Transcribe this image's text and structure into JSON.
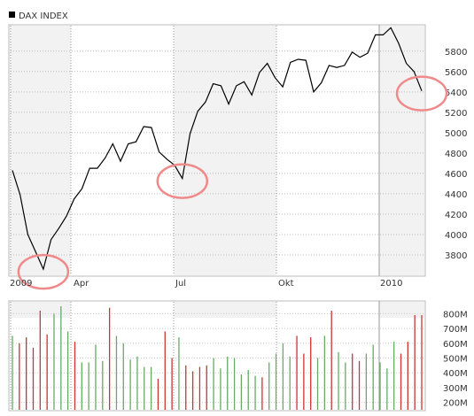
{
  "chart_data": [
    {
      "type": "line",
      "title": "DAX INDEX",
      "xlabel": "",
      "ylabel": "",
      "x_tick_labels": [
        "2009",
        "Apr",
        "Jul",
        "Okt",
        "2010"
      ],
      "y_ticks": [
        3800,
        4000,
        4200,
        4400,
        4600,
        4800,
        5000,
        5200,
        5400,
        5600,
        5800
      ],
      "ylim": [
        3600,
        6050
      ],
      "grid": true,
      "series": [
        {
          "values": [
            4630,
            4390,
            4000,
            3830,
            3660,
            3950,
            4060,
            4180,
            4350,
            4450,
            4650,
            4650,
            4750,
            4890,
            4720,
            4890,
            4910,
            5060,
            5050,
            4810,
            4740,
            4680,
            4550,
            4990,
            5210,
            5300,
            5480,
            5460,
            5280,
            5460,
            5500,
            5370,
            5590,
            5680,
            5540,
            5450,
            5690,
            5720,
            5710,
            5400,
            5490,
            5660,
            5640,
            5660,
            5790,
            5740,
            5780,
            5960,
            5960,
            6030,
            5880,
            5680,
            5600,
            5410
          ],
          "color": "#000000"
        }
      ],
      "circled_values": [
        3660,
        4550,
        5410
      ],
      "highlight_color": "#f08a8a"
    },
    {
      "type": "bar",
      "title": "",
      "y_tick_labels": [
        "800M",
        "700M",
        "600M",
        "500M",
        "400M",
        "300M",
        "200M"
      ],
      "y_ticks": [
        800,
        700,
        600,
        500,
        400,
        300,
        200
      ],
      "unit": "M",
      "ylim": [
        150,
        880
      ],
      "bars": [
        {
          "value": 650,
          "color": "#66aa66"
        },
        {
          "value": 600,
          "color": "#cc3333"
        },
        {
          "value": 640,
          "color": "#cc3333"
        },
        {
          "value": 570,
          "color": "#cc3333"
        },
        {
          "value": 820,
          "color": "#cc3333"
        },
        {
          "value": 660,
          "color": "#cc3333"
        },
        {
          "value": 800,
          "color": "#66aa66"
        },
        {
          "value": 850,
          "color": "#66aa66"
        },
        {
          "value": 680,
          "color": "#66aa66"
        },
        {
          "value": 610,
          "color": "#cc3333"
        },
        {
          "value": 470,
          "color": "#66aa66"
        },
        {
          "value": 470,
          "color": "#66aa66"
        },
        {
          "value": 590,
          "color": "#66aa66"
        },
        {
          "value": 480,
          "color": "#66aa66"
        },
        {
          "value": 840,
          "color": "#cc3333"
        },
        {
          "value": 650,
          "color": "#66aa66"
        },
        {
          "value": 600,
          "color": "#66aa66"
        },
        {
          "value": 490,
          "color": "#66aa66"
        },
        {
          "value": 510,
          "color": "#66aa66"
        },
        {
          "value": 440,
          "color": "#66aa66"
        },
        {
          "value": 440,
          "color": "#66aa66"
        },
        {
          "value": 360,
          "color": "#cc3333"
        },
        {
          "value": 680,
          "color": "#cc3333"
        },
        {
          "value": 500,
          "color": "#cc3333"
        },
        {
          "value": 640,
          "color": "#66aa66"
        },
        {
          "value": 450,
          "color": "#cc3333"
        },
        {
          "value": 410,
          "color": "#cc3333"
        },
        {
          "value": 440,
          "color": "#cc3333"
        },
        {
          "value": 450,
          "color": "#cc3333"
        },
        {
          "value": 500,
          "color": "#66aa66"
        },
        {
          "value": 430,
          "color": "#66aa66"
        },
        {
          "value": 510,
          "color": "#66aa66"
        },
        {
          "value": 500,
          "color": "#66aa66"
        },
        {
          "value": 390,
          "color": "#66aa66"
        },
        {
          "value": 420,
          "color": "#66aa66"
        },
        {
          "value": 380,
          "color": "#66aa66"
        },
        {
          "value": 370,
          "color": "#cc3333"
        },
        {
          "value": 470,
          "color": "#66aa66"
        },
        {
          "value": 530,
          "color": "#66aa66"
        },
        {
          "value": 600,
          "color": "#66aa66"
        },
        {
          "value": 510,
          "color": "#66aa66"
        },
        {
          "value": 650,
          "color": "#cc3333"
        },
        {
          "value": 530,
          "color": "#cc3333"
        },
        {
          "value": 640,
          "color": "#cc3333"
        },
        {
          "value": 500,
          "color": "#66aa66"
        },
        {
          "value": 650,
          "color": "#66aa66"
        },
        {
          "value": 820,
          "color": "#cc3333"
        },
        {
          "value": 540,
          "color": "#66aa66"
        },
        {
          "value": 470,
          "color": "#66aa66"
        },
        {
          "value": 530,
          "color": "#cc3333"
        },
        {
          "value": 480,
          "color": "#cc3333"
        },
        {
          "value": 530,
          "color": "#66aa66"
        },
        {
          "value": 590,
          "color": "#66aa66"
        },
        {
          "value": 470,
          "color": "#66aa66"
        },
        {
          "value": 430,
          "color": "#66aa66"
        },
        {
          "value": 610,
          "color": "#66aa66"
        },
        {
          "value": 530,
          "color": "#cc3333"
        },
        {
          "value": 610,
          "color": "#cc3333"
        },
        {
          "value": 790,
          "color": "#cc3333"
        },
        {
          "value": 790,
          "color": "#cc3333"
        }
      ]
    }
  ]
}
